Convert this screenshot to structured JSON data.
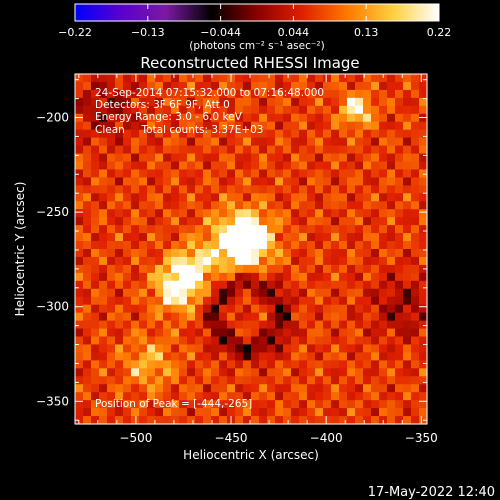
{
  "chart_data": {
    "type": "heatmap",
    "title": "Reconstructed RHESSI Image",
    "xlabel": "Heliocentric X (arcsec)",
    "ylabel": "Heliocentric Y (arcsec)",
    "xlim": [
      -532,
      -347
    ],
    "ylim": [
      -362,
      -177
    ],
    "x_ticks": [
      -500,
      -450,
      -400,
      -350
    ],
    "y_ticks": [
      -200,
      -250,
      -300,
      -350
    ],
    "x_tick_labels": [
      "−500",
      "−450",
      "−400",
      "−350"
    ],
    "y_tick_labels": [
      "−200",
      "−250",
      "−300",
      "−350"
    ],
    "colorbar": {
      "range": [
        -0.22,
        0.22
      ],
      "tick_labels": [
        "−0.22",
        "−0.13",
        "−0.044",
        "0.044",
        "0.13",
        "0.22"
      ],
      "unit_label": "(photons cm⁻² s⁻¹ asec⁻²)",
      "colors": [
        "#0000ff",
        "#5a00d0",
        "#7a1aa0",
        "#000000",
        "#8a0000",
        "#e02000",
        "#ff7a00",
        "#ffd040",
        "#ffffff"
      ]
    },
    "sources": [
      {
        "x": -444,
        "y": -265,
        "sigma": 11,
        "amp": 0.22
      },
      {
        "x": -478,
        "y": -290,
        "sigma": 9,
        "amp": 0.15
      },
      {
        "x": -470,
        "y": -278,
        "sigma": 8,
        "amp": 0.1
      },
      {
        "x": -384,
        "y": -196,
        "sigma": 6,
        "amp": 0.14
      },
      {
        "x": -493,
        "y": -330,
        "sigma": 10,
        "amp": 0.08
      }
    ],
    "dark_ring": {
      "x": -441,
      "y": -305,
      "radius": 18
    },
    "negative_corners": [
      {
        "x": -515,
        "y": -195
      },
      {
        "x": -360,
        "y": -300
      }
    ],
    "annotations": [
      "24-Sep-2014 07:15:32.000 to 07:16:48.000",
      "Detectors: 3F 6F 9F, Att 0",
      "Energy Range: 3.0 - 6.0 keV",
      "Clean     Total counts: 3.37E+03"
    ],
    "peak_label": "Position of Peak = [-444,-265]",
    "peak": [
      -444,
      -265
    ]
  },
  "footer": {
    "timestamp": "17-May-2022 12:40"
  }
}
